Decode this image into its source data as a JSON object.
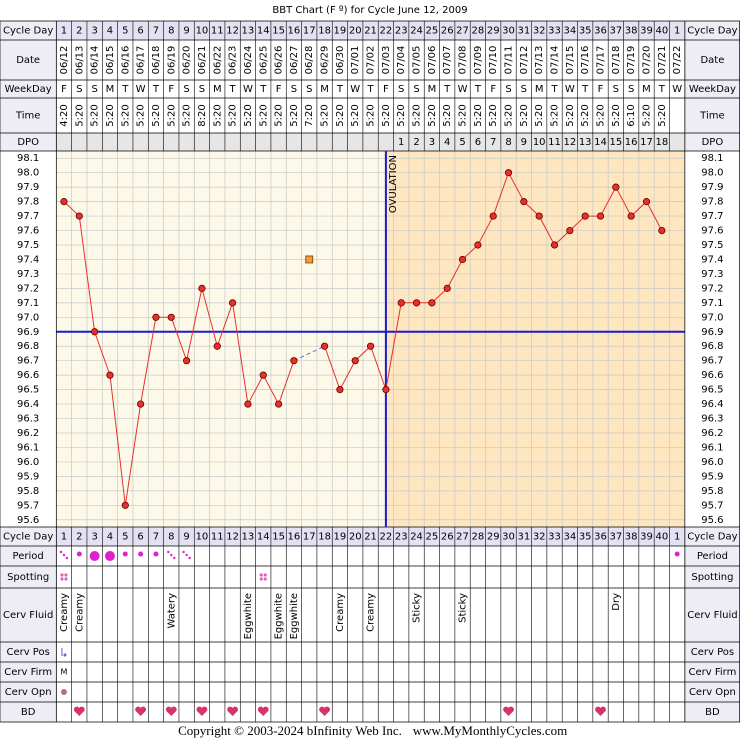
{
  "chart_data": {
    "type": "line",
    "title": "BBT Chart (F º) for Cycle June 12, 2009",
    "row_labels": {
      "cycle_day": "Cycle Day",
      "date": "Date",
      "weekday": "WeekDay",
      "time": "Time",
      "dpo": "DPO",
      "period": "Period",
      "spotting": "Spotting",
      "cerv_fluid": "Cerv Fluid",
      "cerv_pos": "Cerv Pos",
      "cerv_firm": "Cerv Firm",
      "cerv_opn": "Cerv Opn",
      "bd": "BD"
    },
    "categories": [
      1,
      2,
      3,
      4,
      5,
      6,
      7,
      8,
      9,
      10,
      11,
      12,
      13,
      14,
      15,
      16,
      17,
      18,
      19,
      20,
      21,
      22,
      23,
      24,
      25,
      26,
      27,
      28,
      29,
      30,
      31,
      32,
      33,
      34,
      35,
      36,
      37,
      38,
      39,
      40,
      1
    ],
    "dates": [
      "06/12",
      "06/13",
      "06/14",
      "06/15",
      "06/16",
      "06/17",
      "06/18",
      "06/19",
      "06/20",
      "06/21",
      "06/22",
      "06/23",
      "06/24",
      "06/25",
      "06/26",
      "06/27",
      "06/28",
      "06/29",
      "06/30",
      "07/01",
      "07/02",
      "07/03",
      "07/04",
      "07/05",
      "07/06",
      "07/07",
      "07/08",
      "07/09",
      "07/10",
      "07/11",
      "07/12",
      "07/13",
      "07/14",
      "07/15",
      "07/16",
      "07/17",
      "07/18",
      "07/19",
      "07/20",
      "07/21",
      "07/22"
    ],
    "weekdays": [
      "F",
      "S",
      "S",
      "M",
      "T",
      "W",
      "T",
      "F",
      "S",
      "S",
      "M",
      "T",
      "W",
      "T",
      "F",
      "S",
      "S",
      "M",
      "T",
      "W",
      "T",
      "F",
      "S",
      "S",
      "M",
      "T",
      "W",
      "T",
      "F",
      "S",
      "S",
      "M",
      "T",
      "W",
      "T",
      "F",
      "S",
      "S",
      "M",
      "T",
      "W"
    ],
    "times": [
      "4:20",
      "5:20",
      "5:20",
      "5:20",
      "5:20",
      "5:20",
      "5:20",
      "5:20",
      "5:20",
      "8:20",
      "5:20",
      "5:20",
      "5:20",
      "5:20",
      "5:20",
      "5:20",
      "7:20",
      "5:20",
      "5:20",
      "5:20",
      "5:20",
      "5:20",
      "5:20",
      "5:20",
      "5:20",
      "5:20",
      "5:20",
      "5:20",
      "5:20",
      "5:20",
      "5:20",
      "5:20",
      "5:20",
      "5:20",
      "5:20",
      "5:20",
      "5:20",
      "6:10",
      "5:20",
      "5:20",
      null
    ],
    "dpo": [
      null,
      null,
      null,
      null,
      null,
      null,
      null,
      null,
      null,
      null,
      null,
      null,
      null,
      null,
      null,
      null,
      null,
      null,
      null,
      null,
      null,
      null,
      1,
      2,
      3,
      4,
      5,
      6,
      7,
      8,
      9,
      10,
      11,
      12,
      13,
      14,
      15,
      16,
      17,
      18,
      null
    ],
    "values": [
      97.8,
      97.7,
      96.9,
      96.6,
      95.7,
      96.4,
      97.0,
      97.0,
      96.7,
      97.2,
      96.8,
      97.1,
      96.4,
      96.6,
      96.4,
      96.7,
      null,
      96.8,
      96.5,
      96.7,
      96.8,
      96.5,
      97.1,
      97.1,
      97.1,
      97.2,
      97.4,
      97.5,
      97.7,
      98.0,
      97.8,
      97.7,
      97.5,
      97.6,
      97.7,
      97.7,
      97.9,
      97.7,
      97.8,
      97.6,
      null
    ],
    "color": "#e8302a",
    "discarded_values": [
      null,
      null,
      null,
      null,
      null,
      null,
      null,
      null,
      null,
      null,
      null,
      null,
      null,
      null,
      null,
      null,
      97.4,
      null,
      null,
      null,
      null,
      null,
      null,
      null,
      null,
      null,
      null,
      null,
      null,
      null,
      null,
      null,
      null,
      null,
      null,
      null,
      null,
      null,
      null,
      null,
      null
    ],
    "coverline": 96.9,
    "ovulation_cycle_day": 22,
    "ovulation_label": "OVULATION",
    "ylim": [
      95.55,
      98.15
    ],
    "yticks": [
      98.1,
      {
        "value": 98,
        "label": "98.0"
      },
      97.9,
      97.8,
      97.7,
      97.6,
      97.5,
      97.4,
      97.3,
      97.2,
      97.1,
      {
        "value": 97,
        "label": "97.0"
      },
      96.9,
      96.8,
      96.7,
      96.6,
      96.5,
      96.4,
      96.3,
      96.2,
      96.1,
      {
        "value": 96,
        "label": "96.0"
      },
      95.9,
      95.8,
      95.7,
      95.6
    ],
    "grid": true,
    "cerv_fluid": [
      "Creamy",
      "Creamy",
      null,
      null,
      null,
      null,
      null,
      "Watery",
      null,
      null,
      null,
      null,
      "Eggwhite",
      null,
      "Eggwhite",
      "Eggwhite",
      null,
      null,
      "Creamy",
      null,
      "Creamy",
      null,
      null,
      "Sticky",
      null,
      null,
      "Sticky",
      null,
      null,
      null,
      null,
      null,
      null,
      null,
      null,
      null,
      "Dry",
      null,
      null,
      null,
      null
    ],
    "cerv_firm": [
      "M",
      null,
      null,
      null,
      null,
      null,
      null,
      null,
      null,
      null,
      null,
      null,
      null,
      null,
      null,
      null,
      null,
      null,
      null,
      null,
      null,
      null,
      null,
      null,
      null,
      null,
      null,
      null,
      null,
      null,
      null,
      null,
      null,
      null,
      null,
      null,
      null,
      null,
      null,
      null,
      null
    ],
    "bd": [
      false,
      true,
      false,
      false,
      false,
      true,
      false,
      true,
      false,
      true,
      false,
      true,
      false,
      true,
      false,
      false,
      false,
      true,
      false,
      false,
      false,
      false,
      false,
      false,
      false,
      false,
      false,
      false,
      false,
      true,
      false,
      false,
      false,
      false,
      false,
      true,
      false,
      false,
      false,
      false,
      false
    ],
    "footer": "Copyright © 2003-2024 bInfinity Web Inc.",
    "footer_url": "www.MyMonthlyCycles.com"
  }
}
